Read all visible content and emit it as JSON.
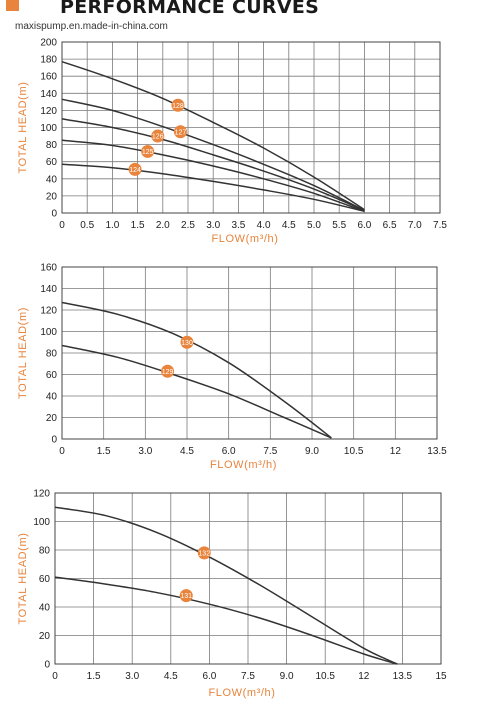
{
  "header": {
    "title": "PERFORMANCE CURVES",
    "website": "maxispump.en.made-in-china.com",
    "accent": "#e8843c"
  },
  "chart_data": [
    {
      "type": "line",
      "xlabel": "FLOW(m³/h)",
      "ylabel": "TOTAL HEAD(m)",
      "xlim": [
        0,
        7.5
      ],
      "ylim": [
        0,
        200
      ],
      "xticks": [
        0,
        0.5,
        1.0,
        1.5,
        2.0,
        2.5,
        3.0,
        3.5,
        4.0,
        4.5,
        5.0,
        5.5,
        6.0,
        6.5,
        7.0,
        7.5
      ],
      "xtick_labels": [
        "0",
        "0.5",
        "1.0",
        "1.5",
        "2.0",
        "2.5",
        "3.0",
        "3.5",
        "4.0",
        "4.5",
        "5.0",
        "5.5",
        "6.0",
        "6.5",
        "7.0",
        "7.5"
      ],
      "yticks": [
        0,
        20,
        40,
        60,
        80,
        100,
        120,
        140,
        160,
        180,
        200
      ],
      "grid": true,
      "series": [
        {
          "name": "128",
          "x": [
            0,
            1,
            2,
            3,
            4,
            5,
            6
          ],
          "y": [
            177,
            157,
            134,
            106,
            76,
            42,
            4
          ],
          "label_at": [
            2.3,
            126
          ]
        },
        {
          "name": "127",
          "x": [
            0,
            1,
            2,
            3,
            4,
            5,
            6
          ],
          "y": [
            133,
            120,
            101,
            80,
            57,
            32,
            3
          ],
          "label_at": [
            2.35,
            95
          ]
        },
        {
          "name": "126",
          "x": [
            0,
            1,
            2,
            3,
            4,
            5,
            6
          ],
          "y": [
            110,
            100,
            86,
            68,
            49,
            28,
            3
          ],
          "label_at": [
            1.9,
            90
          ]
        },
        {
          "name": "125",
          "x": [
            0,
            1,
            2,
            3,
            4,
            5,
            6
          ],
          "y": [
            85,
            79,
            68,
            55,
            40,
            23,
            2
          ],
          "label_at": [
            1.7,
            72
          ]
        },
        {
          "name": "124",
          "x": [
            0,
            1,
            2,
            3,
            4,
            5,
            6
          ],
          "y": [
            57,
            53,
            46,
            37,
            27,
            16,
            2
          ],
          "label_at": [
            1.45,
            51
          ]
        }
      ]
    },
    {
      "type": "line",
      "xlabel": "FLOW(m³/h)",
      "ylabel": "TOTAL HEAD(m)",
      "xlim": [
        0,
        13.5
      ],
      "ylim": [
        0,
        160
      ],
      "xticks": [
        0,
        1.5,
        3.0,
        4.5,
        6.0,
        7.5,
        9.0,
        10.5,
        12,
        13.5
      ],
      "xtick_labels": [
        "0",
        "1.5",
        "3.0",
        "4.5",
        "6.0",
        "7.5",
        "9.0",
        "10.5",
        "12",
        "13.5"
      ],
      "yticks": [
        0,
        20,
        40,
        60,
        80,
        100,
        120,
        140,
        160
      ],
      "grid": true,
      "series": [
        {
          "name": "130",
          "x": [
            0,
            2,
            4,
            6,
            8,
            9.7
          ],
          "y": [
            127,
            116,
            98,
            71,
            35,
            1
          ],
          "label_at": [
            4.5,
            90
          ]
        },
        {
          "name": "129",
          "x": [
            0,
            2,
            4,
            6,
            8,
            9.7
          ],
          "y": [
            87,
            76,
            60,
            42,
            20,
            1
          ],
          "label_at": [
            3.8,
            63
          ]
        }
      ]
    },
    {
      "type": "line",
      "xlabel": "FLOW(m³/h)",
      "ylabel": "TOTAL HEAD(m)",
      "xlim": [
        0,
        15
      ],
      "ylim": [
        0,
        120
      ],
      "xticks": [
        0,
        1.5,
        3.0,
        4.5,
        6.0,
        7.5,
        9.0,
        10.5,
        12,
        13.5,
        15
      ],
      "xtick_labels": [
        "0",
        "1.5",
        "3.0",
        "4.5",
        "6.0",
        "7.5",
        "9.0",
        "10.5",
        "12",
        "13.5",
        "15"
      ],
      "yticks": [
        0,
        20,
        40,
        60,
        80,
        100,
        120
      ],
      "grid": true,
      "series": [
        {
          "name": "132",
          "x": [
            0,
            2,
            4,
            6,
            8,
            10,
            12,
            13.3
          ],
          "y": [
            110,
            104,
            92,
            75,
            55,
            33,
            11,
            0
          ],
          "label_at": [
            5.8,
            78
          ]
        },
        {
          "name": "131",
          "x": [
            0,
            2,
            4,
            6,
            8,
            10,
            12,
            13.3
          ],
          "y": [
            61,
            56,
            50,
            42,
            32,
            20,
            7,
            0
          ],
          "label_at": [
            5.1,
            48
          ]
        }
      ]
    }
  ]
}
